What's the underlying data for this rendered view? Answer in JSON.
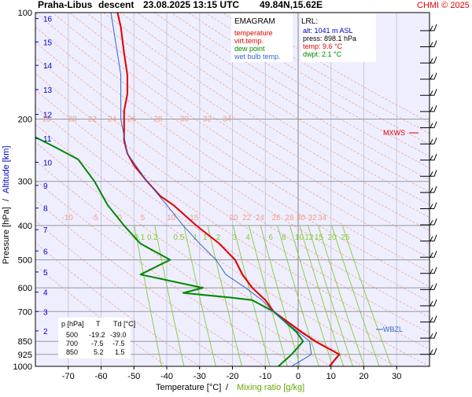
{
  "header": {
    "station": "Praha-Libus",
    "mode": "descent",
    "datetime": "23.08.2025 13:15 UTC",
    "coords": "49.84N,15.62E",
    "credit": "CHMI © 2025"
  },
  "legend": {
    "title": "EMAGRAM",
    "items": [
      {
        "label": "temperature",
        "color": "#e00000"
      },
      {
        "label": "virt.temp.",
        "color": "#e00000"
      },
      {
        "label": "dew point",
        "color": "#008800"
      },
      {
        "label": "wet bulb temp.",
        "color": "#3366cc"
      }
    ]
  },
  "lrl": {
    "title": "LRL:",
    "alt": "alt: 1041 m ASL",
    "press": "press: 898.1 hPa",
    "temp": "temp: 9.6 °C",
    "dwpt": "dwpt: 2.1 °C"
  },
  "markers": {
    "mxws": "MXWS",
    "wbzl": "WBZL"
  },
  "table": {
    "headers": [
      "p [hPa]",
      "T",
      "Td [°C]"
    ],
    "rows": [
      [
        "500",
        "-19.2",
        "-39.0"
      ],
      [
        "700",
        "-7.5",
        "-7.5"
      ],
      [
        "850",
        "5.2",
        "1.5"
      ]
    ]
  },
  "axes": {
    "xlabel_temp": "Temperature [°C]",
    "xlabel_sep": "/",
    "xlabel_mix": "Mixing ratio [g/kg]",
    "ylabel_press": "Pressure [hPa]",
    "ylabel_sep": "/",
    "ylabel_alt": "Altitude [km]"
  },
  "colors": {
    "plot_bg": "#eeeeff",
    "temperature": "#e00000",
    "dewpoint": "#008800",
    "wetbulb": "#3366cc",
    "dry_adiabat": "#f0a088",
    "mixing_ratio": "#88cc33",
    "altitude": "#0000cc",
    "isobar": "#999999"
  },
  "chart_data": {
    "type": "line",
    "title": "",
    "xlim": [
      -80,
      40
    ],
    "ylim": [
      1000,
      100
    ],
    "yscale": "log",
    "x_ticks": [
      -70,
      -60,
      -50,
      -40,
      -30,
      -20,
      -10,
      0,
      10,
      20,
      30
    ],
    "pressure_ticks": [
      100,
      200,
      300,
      400,
      500,
      600,
      700,
      850,
      925,
      1000
    ],
    "altitude_ticks": [
      {
        "km": "2",
        "p": 794
      },
      {
        "km": "3",
        "p": 700
      },
      {
        "km": "4",
        "p": 617
      },
      {
        "km": "5",
        "p": 541
      },
      {
        "km": "6",
        "p": 472
      },
      {
        "km": "7",
        "p": 411
      },
      {
        "km": "8",
        "p": 357
      },
      {
        "km": "9",
        "p": 308
      },
      {
        "km": "10",
        "p": 265
      },
      {
        "km": "11",
        "p": 227
      },
      {
        "km": "12",
        "p": 194
      },
      {
        "km": "13",
        "p": 165
      },
      {
        "km": "14",
        "p": 141
      },
      {
        "km": "15",
        "p": 121
      },
      {
        "km": "16",
        "p": 104
      }
    ],
    "adiabat_label_rows": [
      {
        "p": 200,
        "labels": [
          {
            "text": "15",
            "t": -78
          },
          {
            "text": "20",
            "t": -70
          },
          {
            "text": "22",
            "t": -64
          },
          {
            "text": "24",
            "t": -58
          },
          {
            "text": "26",
            "t": -52
          },
          {
            "text": "28",
            "t": -44
          },
          {
            "text": "30",
            "t": -36
          },
          {
            "text": "32",
            "t": -29
          },
          {
            "text": "34",
            "t": -23
          }
        ]
      },
      {
        "p": 380,
        "labels": [
          {
            "text": "-10",
            "t": -72
          },
          {
            "text": "-5",
            "t": -63
          },
          {
            "text": "0",
            "t": -55
          },
          {
            "text": "5",
            "t": -48
          },
          {
            "text": "10",
            "t": -40
          },
          {
            "text": "15",
            "t": -33
          },
          {
            "text": "20",
            "t": -21
          },
          {
            "text": "22",
            "t": -17
          },
          {
            "text": "24",
            "t": -13
          },
          {
            "text": "26",
            "t": -8
          },
          {
            "text": "28",
            "t": -4
          },
          {
            "text": "30",
            "t": -0.5
          },
          {
            "text": "32",
            "t": 3
          },
          {
            "text": "34",
            "t": 6
          }
        ]
      }
    ],
    "mixing_ratio_labels": [
      {
        "text": "0.1",
        "t": -50
      },
      {
        "text": "0.2",
        "t": -46
      },
      {
        "text": "0.5",
        "t": -38
      },
      {
        "text": "1",
        "t": -32
      },
      {
        "text": "1",
        "t": -29
      },
      {
        "text": "2",
        "t": -25
      },
      {
        "text": "3",
        "t": -20
      },
      {
        "text": "4",
        "t": -16
      },
      {
        "text": "6",
        "t": -9
      },
      {
        "text": "8",
        "t": -5
      },
      {
        "text": "10",
        "t": -1
      },
      {
        "text": "12",
        "t": 2
      },
      {
        "text": "15",
        "t": 5
      },
      {
        "text": "20",
        "t": 9
      },
      {
        "text": "25",
        "t": 13
      }
    ],
    "series": [
      {
        "key": "temperature",
        "points": [
          [
            1000,
            9.5
          ],
          [
            925,
            12.5
          ],
          [
            850,
            5.2
          ],
          [
            800,
            1.0
          ],
          [
            700,
            -7.5
          ],
          [
            650,
            -10
          ],
          [
            600,
            -14
          ],
          [
            550,
            -17
          ],
          [
            500,
            -19.2
          ],
          [
            450,
            -24
          ],
          [
            400,
            -31
          ],
          [
            350,
            -38
          ],
          [
            330,
            -42
          ],
          [
            300,
            -46
          ],
          [
            270,
            -50
          ],
          [
            250,
            -52
          ],
          [
            230,
            -53
          ],
          [
            200,
            -53
          ],
          [
            190,
            -53
          ],
          [
            170,
            -52
          ],
          [
            150,
            -52
          ],
          [
            130,
            -53
          ],
          [
            110,
            -54
          ],
          [
            100,
            -55
          ]
        ]
      },
      {
        "key": "virt_temp",
        "points": [
          [
            1000,
            9.7
          ],
          [
            925,
            12.7
          ],
          [
            850,
            5.5
          ],
          [
            800,
            1.3
          ],
          [
            700,
            -7.3
          ],
          [
            650,
            -9.8
          ],
          [
            600,
            -13.8
          ],
          [
            550,
            -16.8
          ],
          [
            500,
            -19.1
          ],
          [
            450,
            -23.9
          ],
          [
            400,
            -30.9
          ],
          [
            350,
            -37.9
          ],
          [
            330,
            -41.9
          ],
          [
            300,
            -45.9
          ],
          [
            270,
            -49.9
          ],
          [
            250,
            -51.9
          ],
          [
            230,
            -52.9
          ],
          [
            200,
            -52.9
          ],
          [
            190,
            -52.9
          ],
          [
            170,
            -51.9
          ],
          [
            150,
            -51.9
          ],
          [
            130,
            -52.9
          ],
          [
            110,
            -53.9
          ],
          [
            100,
            -54.9
          ]
        ]
      },
      {
        "key": "dewpoint",
        "points": [
          [
            1000,
            -6
          ],
          [
            925,
            -2
          ],
          [
            850,
            1.5
          ],
          [
            800,
            -0.5
          ],
          [
            700,
            -7.5
          ],
          [
            650,
            -14
          ],
          [
            640,
            -20
          ],
          [
            620,
            -35
          ],
          [
            600,
            -29
          ],
          [
            550,
            -48
          ],
          [
            500,
            -39
          ],
          [
            450,
            -48
          ],
          [
            400,
            -53
          ],
          [
            350,
            -58
          ],
          [
            300,
            -62
          ],
          [
            260,
            -67
          ],
          [
            240,
            -74
          ],
          [
            225,
            -80
          ]
        ]
      },
      {
        "key": "wetbulb",
        "points": [
          [
            1000,
            -2
          ],
          [
            925,
            4
          ],
          [
            850,
            3.5
          ],
          [
            800,
            0
          ],
          [
            700,
            -7.6
          ],
          [
            650,
            -11
          ],
          [
            600,
            -16
          ],
          [
            550,
            -22
          ],
          [
            500,
            -25
          ],
          [
            450,
            -30
          ],
          [
            400,
            -35
          ],
          [
            350,
            -40
          ],
          [
            300,
            -46
          ],
          [
            250,
            -52
          ],
          [
            200,
            -54
          ],
          [
            150,
            -54
          ],
          [
            100,
            -57
          ]
        ]
      }
    ]
  }
}
